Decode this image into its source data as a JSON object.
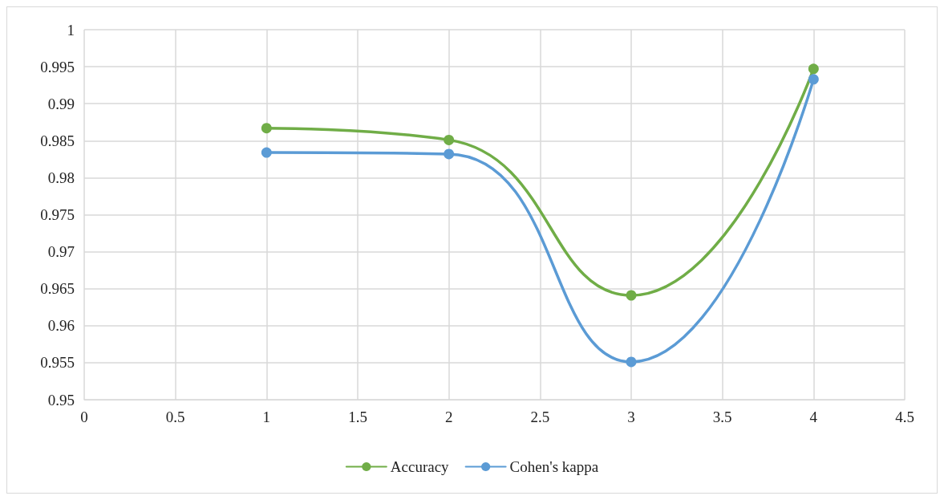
{
  "chart_data": {
    "type": "line",
    "x": [
      1,
      2,
      3,
      4
    ],
    "series": [
      {
        "name": "Accuracy",
        "color": "#70ad47",
        "values": [
          0.9867,
          0.9851,
          0.9641,
          0.9947
        ]
      },
      {
        "name": "Cohen's kappa",
        "color": "#5b9bd5",
        "values": [
          0.9834,
          0.9832,
          0.9551,
          0.9933
        ]
      }
    ],
    "xlim": [
      0,
      4.5
    ],
    "xticks": [
      0,
      0.5,
      1,
      1.5,
      2,
      2.5,
      3,
      3.5,
      4,
      4.5
    ],
    "ylim": [
      0.95,
      1
    ],
    "yticks": [
      0.95,
      0.955,
      0.96,
      0.965,
      0.97,
      0.975,
      0.98,
      0.985,
      0.99,
      0.995,
      1
    ],
    "grid": true,
    "legend": "bottom",
    "marker": "circle",
    "line_style": "solid"
  }
}
